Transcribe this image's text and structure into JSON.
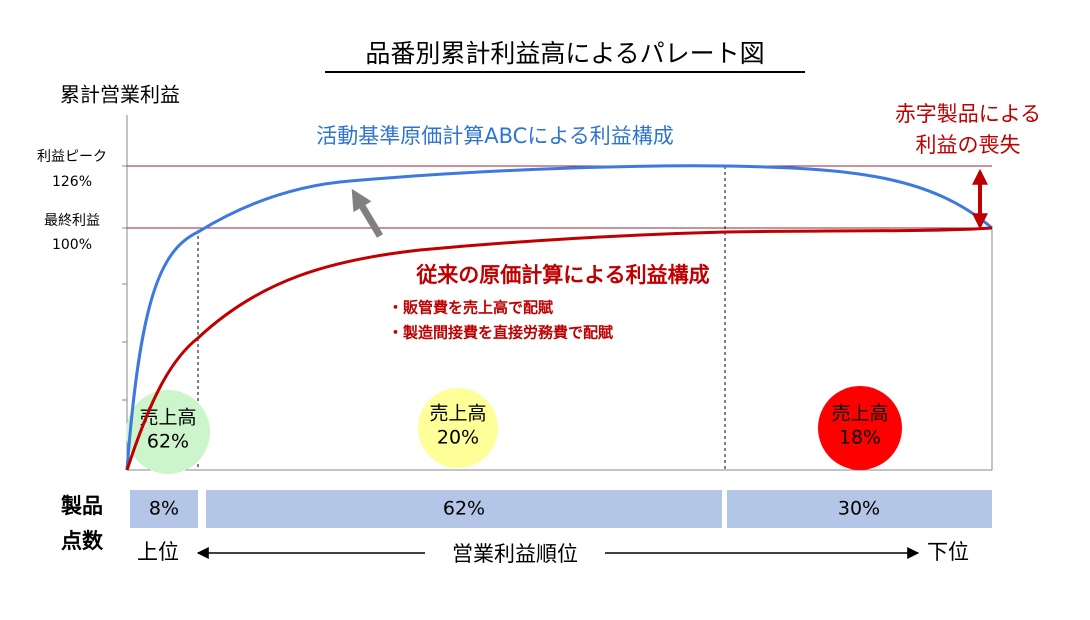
{
  "title": "品番別累計利益高によるパレート図",
  "y_axis_label": "累計営業利益",
  "peak": {
    "label": "利益ピーク",
    "value": "126%"
  },
  "final": {
    "label": "最終利益",
    "value": "100%"
  },
  "abc_curve_label": "活動基準原価計算ABCによる利益構成",
  "traditional_curve_label": "従来の原価計算による利益構成",
  "traditional_notes": [
    "・販管費を売上高で配賦",
    "・製造間接費を直接労務費で配賦"
  ],
  "loss_label": [
    "赤字製品による",
    "利益の喪失"
  ],
  "sales_circles": [
    {
      "label": "売上高",
      "value": "62%"
    },
    {
      "label": "売上高",
      "value": "20%"
    },
    {
      "label": "売上高",
      "value": "18%"
    }
  ],
  "product_count_label": [
    "製品",
    "点数"
  ],
  "product_count_bars": [
    "8%",
    "62%",
    "30%"
  ],
  "rank": {
    "top": "上位",
    "axis": "営業利益順位",
    "bottom": "下位"
  }
}
